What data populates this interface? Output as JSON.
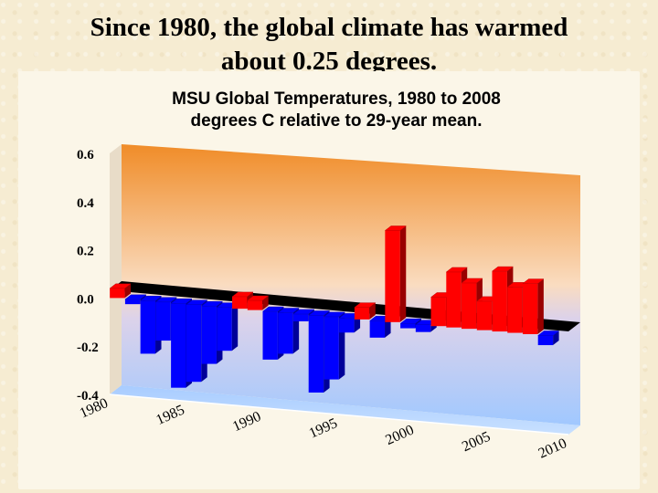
{
  "slide": {
    "title_line1": "Since 1980, the global climate has warmed",
    "title_line2": "about 0.25 degrees."
  },
  "chart_data": {
    "type": "bar",
    "title": "MSU Global Temperatures, 1980 to 2008",
    "subtitle": "degrees C relative to 29-year mean.",
    "xlabel": "",
    "ylabel": "",
    "ylim": [
      -0.4,
      0.6
    ],
    "yticks": [
      "0.6",
      "0.4",
      "0.2",
      "0.0",
      "-0.2",
      "-0.4"
    ],
    "xticks": [
      "1980",
      "1985",
      "1990",
      "1995",
      "2000",
      "2005",
      "2010"
    ],
    "grid": false,
    "legend": "none",
    "colors": {
      "positive": "#ff0000",
      "negative": "#0000ff"
    },
    "x": [
      1980,
      1981,
      1982,
      1983,
      1984,
      1985,
      1986,
      1987,
      1988,
      1989,
      1990,
      1991,
      1992,
      1993,
      1994,
      1995,
      1996,
      1997,
      1998,
      1999,
      2000,
      2001,
      2002,
      2003,
      2004,
      2005,
      2006,
      2007,
      2008
    ],
    "values": [
      0.04,
      -0.02,
      -0.22,
      -0.16,
      -0.35,
      -0.32,
      -0.24,
      -0.18,
      0.05,
      0.04,
      -0.2,
      -0.17,
      -0.03,
      -0.32,
      -0.26,
      -0.06,
      0.05,
      -0.07,
      0.38,
      -0.02,
      -0.03,
      0.12,
      0.23,
      0.19,
      0.12,
      0.25,
      0.19,
      0.21,
      -0.04
    ]
  }
}
